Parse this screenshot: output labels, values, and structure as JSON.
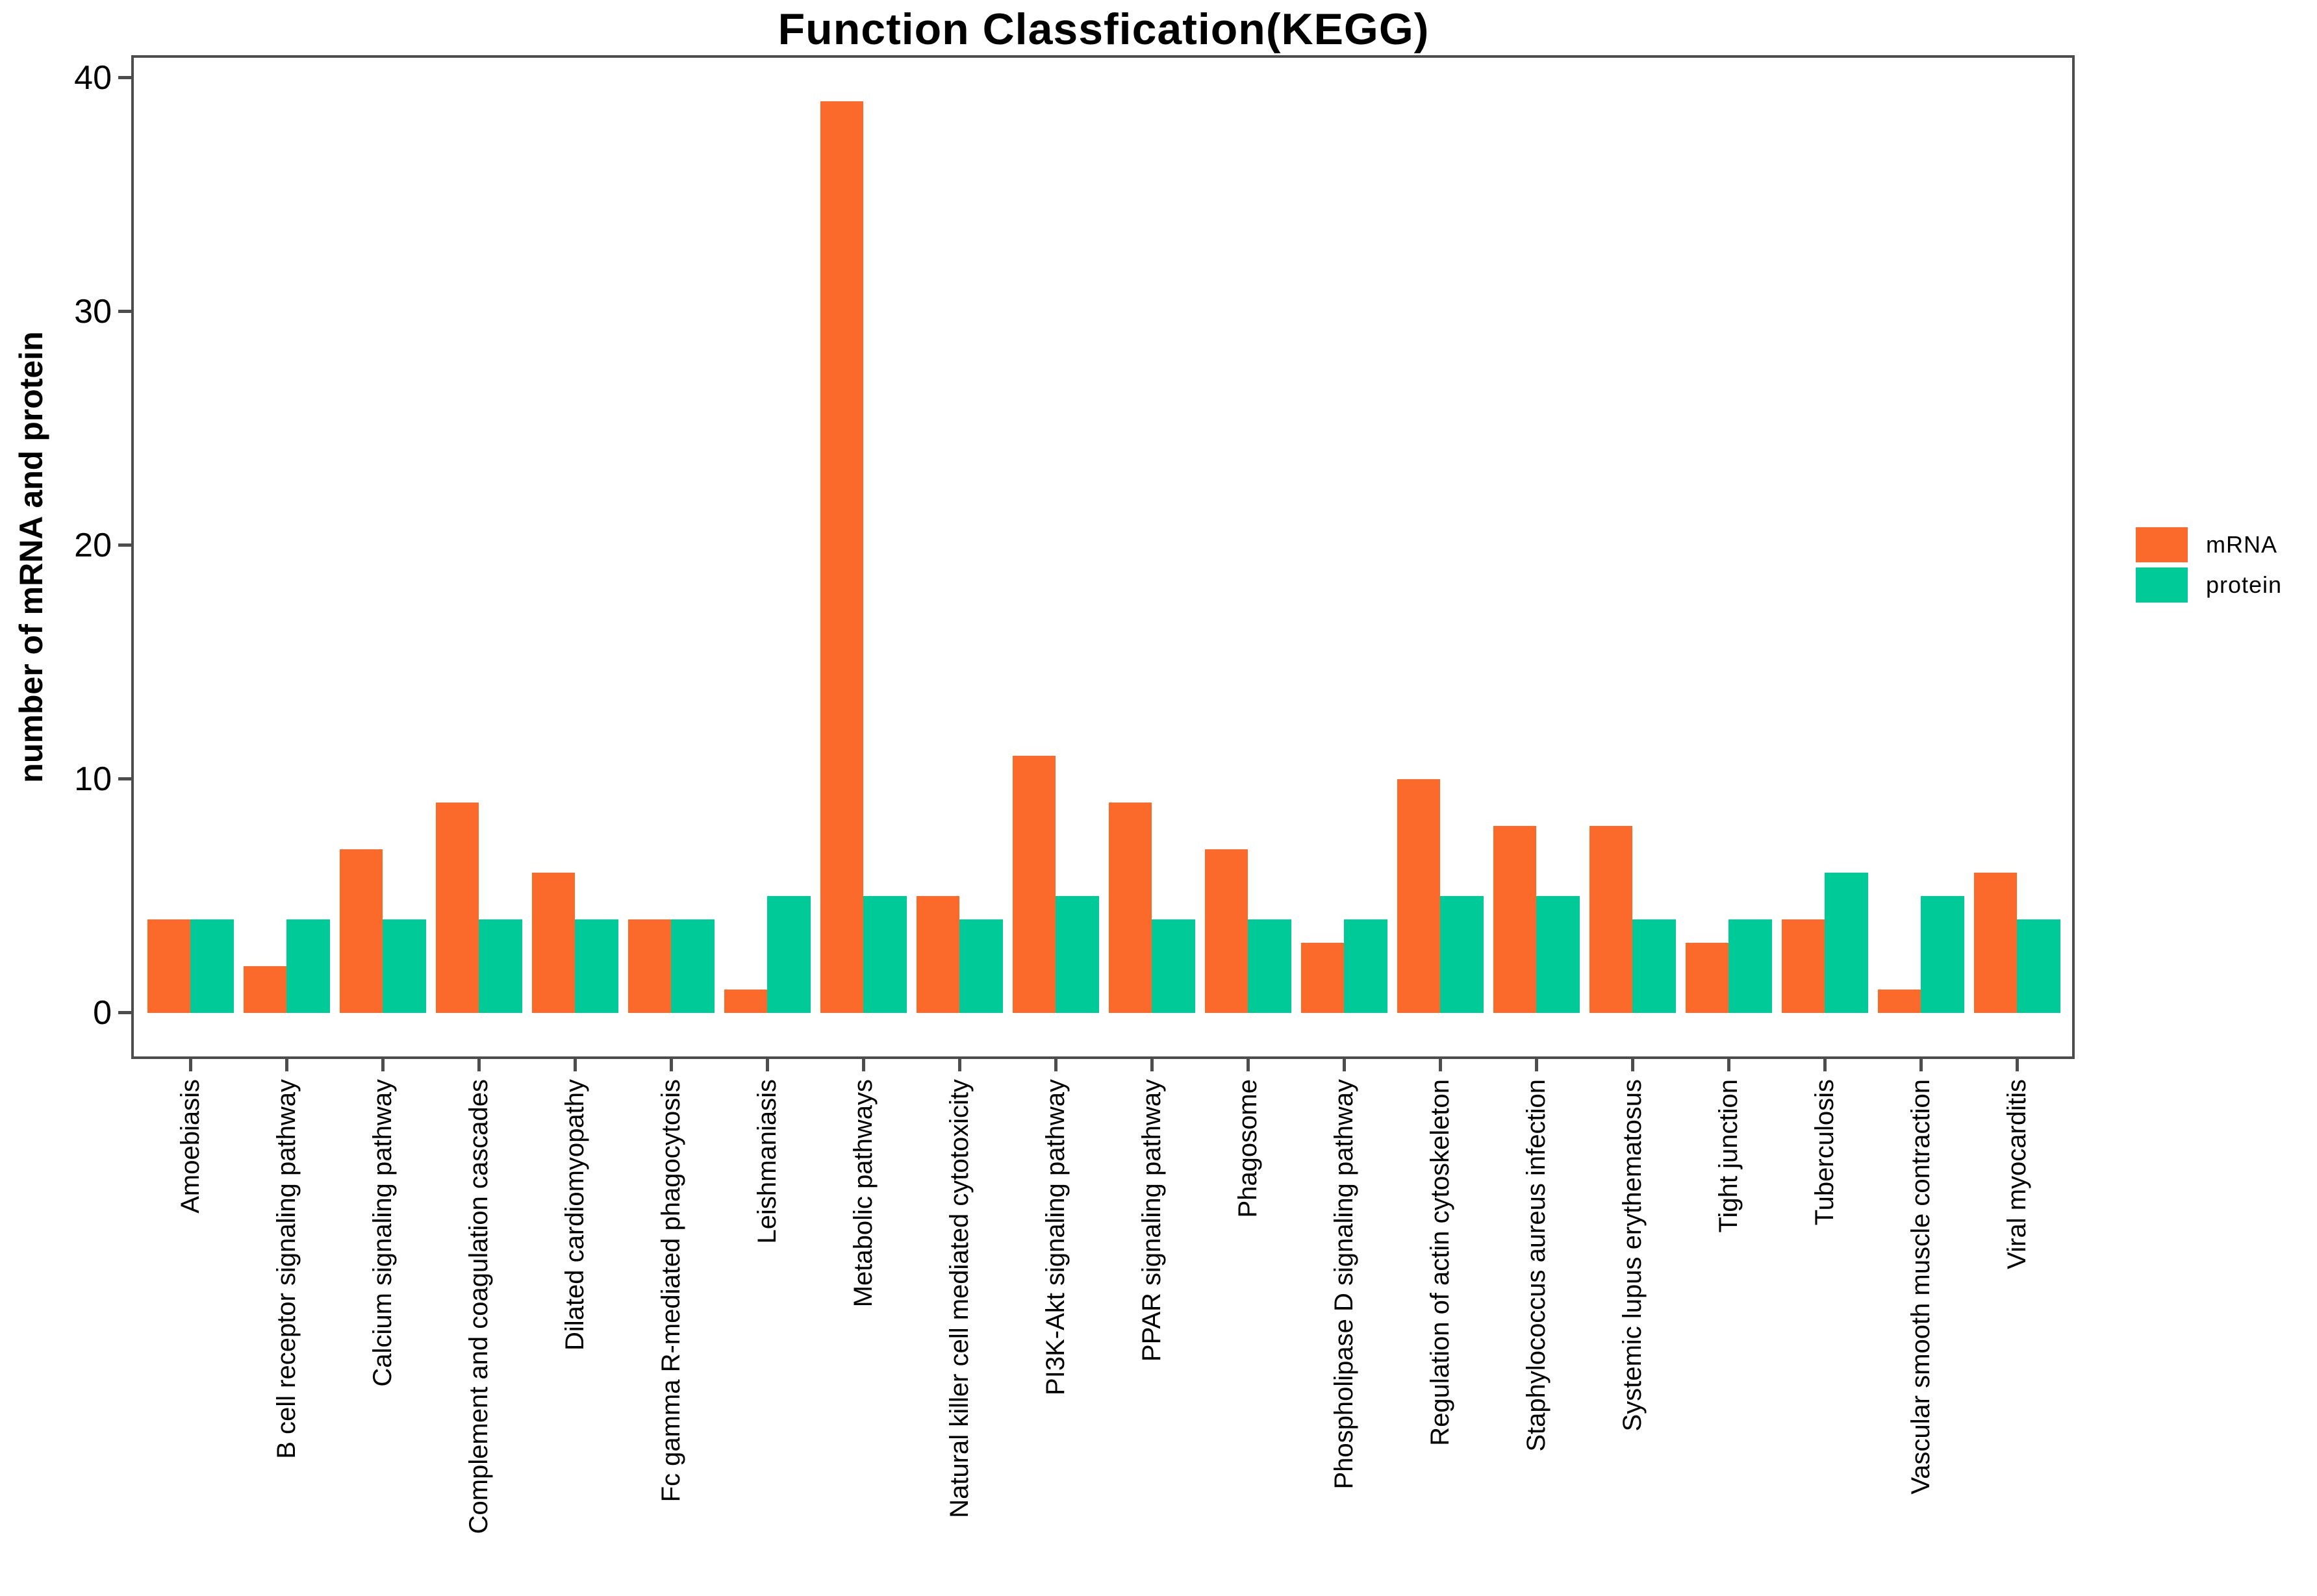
{
  "title": "Function Classfication(KEGG)",
  "y_axis": {
    "label": "number of mRNA and protein",
    "ticks": [
      0,
      10,
      20,
      30,
      40
    ]
  },
  "legend": {
    "items": [
      {
        "label": "mRNA",
        "color": "#FC6A2B"
      },
      {
        "label": "protein",
        "color": "#00CB98"
      }
    ]
  },
  "colors": {
    "axis": "#4D4D4D",
    "text": "#000000",
    "background": "#FFFFFF",
    "mrna": "#FC6A2B",
    "protein": "#00CB98"
  },
  "chart_data": {
    "type": "bar",
    "title": "Function Classfication(KEGG)",
    "xlabel": "",
    "ylabel": "number of mRNA and protein",
    "ylim": [
      0,
      40
    ],
    "grid": false,
    "legend_position": "right",
    "categories": [
      "Amoebiasis",
      "B cell receptor signaling pathway",
      "Calcium signaling pathway",
      "Complement and coagulation cascades",
      "Dilated cardiomyopathy",
      "Fc gamma R-mediated phagocytosis",
      "Leishmaniasis",
      "Metabolic pathways",
      "Natural killer cell mediated cytotoxicity",
      "PI3K-Akt signaling pathway",
      "PPAR signaling pathway",
      "Phagosome",
      "Phospholipase D signaling pathway",
      "Regulation of actin cytoskeleton",
      "Staphylococcus aureus infection",
      "Systemic lupus erythematosus",
      "Tight junction",
      "Tuberculosis",
      "Vascular smooth muscle contraction",
      "Viral myocarditis"
    ],
    "series": [
      {
        "name": "mRNA",
        "color": "#FC6A2B",
        "values": [
          4,
          2,
          7,
          9,
          6,
          4,
          1,
          39,
          5,
          11,
          9,
          7,
          3,
          10,
          8,
          8,
          3,
          4,
          1,
          6
        ]
      },
      {
        "name": "protein",
        "color": "#00CB98",
        "values": [
          4,
          4,
          4,
          4,
          4,
          4,
          5,
          5,
          4,
          5,
          4,
          4,
          4,
          5,
          5,
          4,
          4,
          6,
          5,
          4
        ]
      }
    ]
  }
}
